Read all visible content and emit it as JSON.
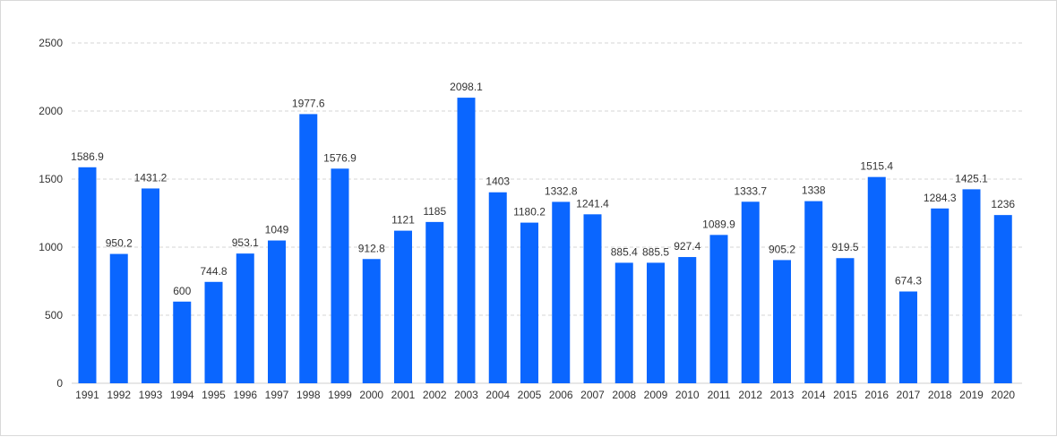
{
  "chart_data": {
    "type": "bar",
    "categories": [
      "1991",
      "1992",
      "1993",
      "1994",
      "1995",
      "1996",
      "1997",
      "1998",
      "1999",
      "2000",
      "2001",
      "2002",
      "2003",
      "2004",
      "2005",
      "2006",
      "2007",
      "2008",
      "2009",
      "2010",
      "2011",
      "2012",
      "2013",
      "2014",
      "2015",
      "2016",
      "2017",
      "2018",
      "2019",
      "2020"
    ],
    "values": [
      1586.9,
      950.2,
      1431.2,
      600,
      744.8,
      953.1,
      1049,
      1977.6,
      1576.9,
      912.8,
      1121,
      1185,
      2098.1,
      1403,
      1180.2,
      1332.8,
      1241.4,
      885.4,
      885.5,
      927.4,
      1089.9,
      1333.7,
      905.2,
      1338,
      919.5,
      1515.4,
      674.3,
      1284.3,
      1425.1,
      1236
    ],
    "data_labels": [
      "1586.9",
      "950.2",
      "1431.2",
      "600",
      "744.8",
      "953.1",
      "1049",
      "1977.6",
      "1576.9",
      "912.8",
      "1121",
      "1185",
      "2098.1",
      "1403",
      "1180.2",
      "1332.8",
      "1241.4",
      "885.4",
      "885.5",
      "927.4",
      "1089.9",
      "1333.7",
      "905.2",
      "1338",
      "919.5",
      "1515.4",
      "674.3",
      "1284.3",
      "1425.1",
      "1236"
    ],
    "ylim": [
      0,
      2500
    ],
    "yticks": [
      0,
      500,
      1000,
      1500,
      2000,
      2500
    ],
    "ytick_labels": [
      "0",
      "500",
      "1000",
      "1500",
      "2000",
      "2500"
    ],
    "grid": true,
    "bar_color": "#0a66ff",
    "title": "",
    "xlabel": "",
    "ylabel": ""
  }
}
